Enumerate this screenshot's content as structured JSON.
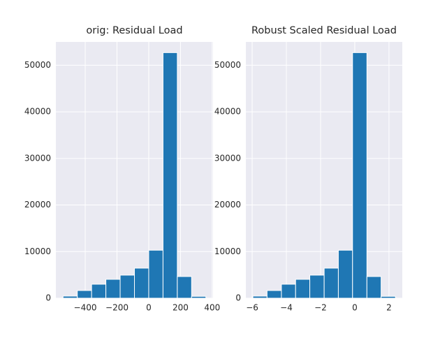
{
  "chart_data": [
    {
      "type": "histogram",
      "title": "orig: Residual Load",
      "bins": [
        -540,
        -450,
        -360,
        -270,
        -180,
        -90,
        0,
        90,
        180,
        270,
        360
      ],
      "values": [
        450,
        1650,
        3000,
        4050,
        4950,
        6450,
        10300,
        52700,
        4650,
        400
      ],
      "color": "#1f77b4",
      "grid": true,
      "xlim": [
        -585,
        405
      ],
      "xticks": [
        {
          "value": -400,
          "label": "−400"
        },
        {
          "value": -200,
          "label": "−200"
        },
        0,
        200,
        400
      ],
      "ylim": [
        0,
        55000
      ],
      "yticks": [
        0,
        10000,
        20000,
        30000,
        40000,
        50000
      ]
    },
    {
      "type": "histogram",
      "title": "Robust Scaled Residual Load",
      "bins": [
        -5.96,
        -5.13,
        -4.29,
        -3.46,
        -2.63,
        -1.79,
        -0.96,
        -0.13,
        0.71,
        1.54,
        2.38
      ],
      "values": [
        450,
        1650,
        3000,
        4050,
        4950,
        6450,
        10300,
        52700,
        4650,
        400
      ],
      "color": "#1f77b4",
      "grid": true,
      "xlim": [
        -6.37,
        2.78
      ],
      "xticks": [
        {
          "value": -6,
          "label": "−6"
        },
        {
          "value": -4,
          "label": "−4"
        },
        {
          "value": -2,
          "label": "−2"
        },
        0,
        2
      ],
      "ylim": [
        0,
        55000
      ],
      "yticks": [
        0,
        10000,
        20000,
        30000,
        40000,
        50000
      ]
    }
  ]
}
